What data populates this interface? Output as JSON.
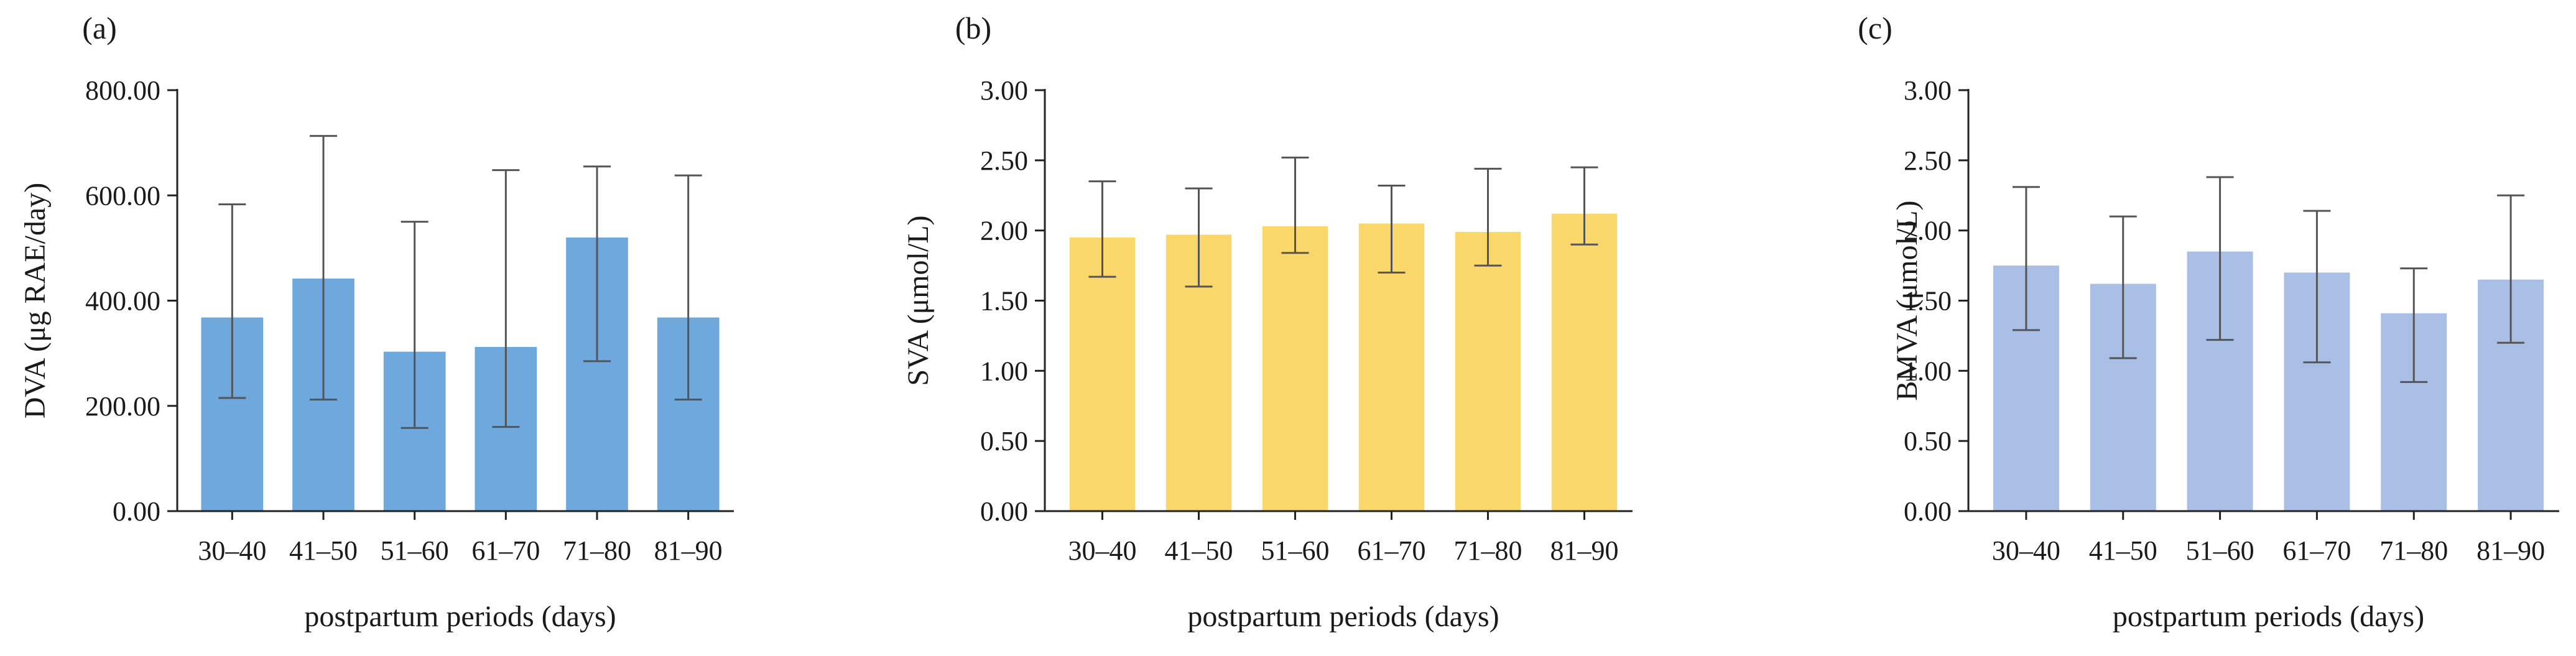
{
  "chart_data": [
    {
      "id": "a",
      "panel_label": "(a)",
      "type": "bar",
      "categories": [
        "30–40",
        "41–50",
        "51–60",
        "61–70",
        "71–80",
        "81–90"
      ],
      "values": [
        368,
        442,
        303,
        312,
        520,
        368
      ],
      "error_low": [
        215,
        212,
        158,
        160,
        285,
        212
      ],
      "error_high": [
        583,
        713,
        550,
        648,
        655,
        638
      ],
      "ylabel": "DVA (μg RAE/day)",
      "xlabel": "postpartum periods (days)",
      "ylim": [
        0,
        800
      ],
      "yticks": [
        0,
        200,
        400,
        600,
        800
      ],
      "ytick_labels": [
        "0.00",
        "200.00",
        "400.00",
        "600.00",
        "800.00"
      ],
      "color": "#6fa8dc"
    },
    {
      "id": "b",
      "panel_label": "(b)",
      "type": "bar",
      "categories": [
        "30–40",
        "41–50",
        "51–60",
        "61–70",
        "71–80",
        "81–90"
      ],
      "values": [
        1.95,
        1.97,
        2.03,
        2.05,
        1.99,
        2.12
      ],
      "error_low": [
        1.67,
        1.6,
        1.84,
        1.7,
        1.75,
        1.9
      ],
      "error_high": [
        2.35,
        2.3,
        2.52,
        2.32,
        2.44,
        2.45
      ],
      "ylabel": "SVA (μmol/L)",
      "xlabel": "postpartum periods (days)",
      "ylim": [
        0,
        3
      ],
      "yticks": [
        0,
        0.5,
        1,
        1.5,
        2,
        2.5,
        3
      ],
      "ytick_labels": [
        "0.00",
        "0.50",
        "1.00",
        "1.50",
        "2.00",
        "2.50",
        "3.00"
      ],
      "color": "#f9d76a"
    },
    {
      "id": "c",
      "panel_label": "(c)",
      "type": "bar",
      "categories": [
        "30–40",
        "41–50",
        "51–60",
        "61–70",
        "71–80",
        "81–90"
      ],
      "values": [
        1.75,
        1.62,
        1.85,
        1.7,
        1.41,
        1.65
      ],
      "error_low": [
        1.29,
        1.09,
        1.22,
        1.06,
        0.92,
        1.2
      ],
      "error_high": [
        2.31,
        2.1,
        2.38,
        2.14,
        1.73,
        2.25
      ],
      "ylabel": "BMVA (μmol/L)",
      "xlabel": "postpartum periods (days)",
      "ylim": [
        0,
        3
      ],
      "yticks": [
        0,
        0.5,
        1,
        1.5,
        2,
        2.5,
        3
      ],
      "ytick_labels": [
        "0.00",
        "0.50",
        "1.00",
        "1.50",
        "2.00",
        "2.50",
        "3.00"
      ],
      "color": "#a9bfe6"
    }
  ]
}
